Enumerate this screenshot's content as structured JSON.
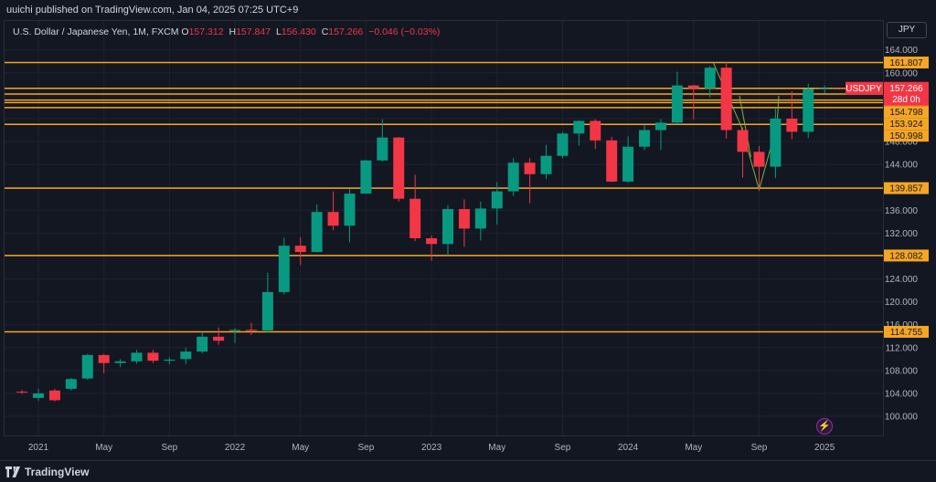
{
  "header": {
    "published": "uuichi published on TradingView.com, Jan 04, 2025 07:25 UTC+9"
  },
  "legend": {
    "symbol": "U.S. Dollar / Japanese Yen, 1M, FXCM",
    "o_label": "O",
    "o": "157.312",
    "h_label": "H",
    "h": "157.847",
    "l_label": "L",
    "l": "156.430",
    "c_label": "C",
    "c": "157.266",
    "chg": "−0.046 (−0.03%)"
  },
  "axis_currency": "JPY",
  "current": {
    "symbol": "USDJPY",
    "price": "157.266",
    "countdown": "28d 0h"
  },
  "footer": {
    "brand": "TradingView",
    "flash_icon": "lightning-icon"
  },
  "colors": {
    "up": "#089981",
    "down": "#f23645",
    "hline": "#f5a623",
    "bg": "#131722",
    "label_bg": "#f5a623"
  },
  "chart_data": {
    "type": "candlestick",
    "interval": "1M",
    "y_ticks": [
      "100.000",
      "104.000",
      "108.000",
      "112.000",
      "116.000",
      "120.000",
      "124.000",
      "128.000",
      "132.000",
      "136.000",
      "140.000",
      "144.000",
      "148.000",
      "152.000",
      "156.000",
      "160.000",
      "164.000"
    ],
    "y_tick_values": [
      100,
      104,
      108,
      112,
      116,
      120,
      124,
      128,
      132,
      136,
      140,
      144,
      148,
      152,
      156,
      160,
      164
    ],
    "ylim": [
      92.5,
      168
    ],
    "x_labels": [
      "2021",
      "May",
      "Sep",
      "2022",
      "May",
      "Sep",
      "2023",
      "May",
      "Sep",
      "2024",
      "May",
      "Sep",
      "2025"
    ],
    "x_label_month_index": [
      0,
      4,
      8,
      12,
      16,
      20,
      24,
      28,
      32,
      36,
      40,
      44,
      48
    ],
    "horizontal_levels": [
      {
        "value": 161.807,
        "label": "161.807"
      },
      {
        "value": 157.3,
        "label": ""
      },
      {
        "value": 156.3,
        "label": ""
      },
      {
        "value": 155.237,
        "label": "155.237"
      },
      {
        "value": 154.798,
        "label": "154.798"
      },
      {
        "value": 153.924,
        "label": "153.924"
      },
      {
        "value": 150.998,
        "label": "150.998"
      },
      {
        "value": 139.857,
        "label": "139.857"
      },
      {
        "value": 128.082,
        "label": "128.082"
      },
      {
        "value": 114.755,
        "label": "114.755"
      }
    ],
    "candles": [
      {
        "m": -1,
        "o": 104.3,
        "h": 104.6,
        "l": 103.9,
        "c": 104.2
      },
      {
        "m": 0,
        "o": 103.2,
        "h": 104.8,
        "l": 102.7,
        "c": 104.0
      },
      {
        "m": 1,
        "o": 104.5,
        "h": 104.8,
        "l": 102.6,
        "c": 102.8
      },
      {
        "m": 2,
        "o": 104.8,
        "h": 106.7,
        "l": 104.5,
        "c": 106.5
      },
      {
        "m": 3,
        "o": 106.6,
        "h": 110.9,
        "l": 106.4,
        "c": 110.7
      },
      {
        "m": 4,
        "o": 110.7,
        "h": 110.9,
        "l": 107.5,
        "c": 109.3
      },
      {
        "m": 5,
        "o": 109.3,
        "h": 110.0,
        "l": 108.6,
        "c": 109.6
      },
      {
        "m": 6,
        "o": 109.6,
        "h": 111.6,
        "l": 109.2,
        "c": 111.1
      },
      {
        "m": 7,
        "o": 111.1,
        "h": 111.6,
        "l": 109.3,
        "c": 109.7
      },
      {
        "m": 8,
        "o": 109.7,
        "h": 110.3,
        "l": 109.1,
        "c": 109.9
      },
      {
        "m": 9,
        "o": 110.0,
        "h": 112.0,
        "l": 109.1,
        "c": 111.3
      },
      {
        "m": 10,
        "o": 111.3,
        "h": 114.7,
        "l": 111.0,
        "c": 113.9
      },
      {
        "m": 11,
        "o": 113.9,
        "h": 115.5,
        "l": 112.5,
        "c": 113.2
      },
      {
        "m": 12,
        "o": 115.0,
        "h": 115.4,
        "l": 112.8,
        "c": 115.1
      },
      {
        "m": 13,
        "o": 115.1,
        "h": 116.3,
        "l": 114.2,
        "c": 115.0
      },
      {
        "m": 14,
        "o": 115.0,
        "h": 125.1,
        "l": 114.6,
        "c": 121.7
      },
      {
        "m": 15,
        "o": 121.7,
        "h": 131.2,
        "l": 121.3,
        "c": 129.8
      },
      {
        "m": 16,
        "o": 129.8,
        "h": 131.3,
        "l": 126.4,
        "c": 128.7
      },
      {
        "m": 17,
        "o": 128.7,
        "h": 137.0,
        "l": 128.6,
        "c": 135.7
      },
      {
        "m": 18,
        "o": 135.7,
        "h": 139.3,
        "l": 132.5,
        "c": 133.3
      },
      {
        "m": 19,
        "o": 133.3,
        "h": 139.7,
        "l": 130.4,
        "c": 138.9
      },
      {
        "m": 20,
        "o": 138.9,
        "h": 144.8,
        "l": 138.9,
        "c": 144.7
      },
      {
        "m": 21,
        "o": 144.7,
        "h": 151.9,
        "l": 144.5,
        "c": 148.7
      },
      {
        "m": 22,
        "o": 148.7,
        "h": 148.8,
        "l": 137.5,
        "c": 138.0
      },
      {
        "m": 23,
        "o": 138.0,
        "h": 142.2,
        "l": 130.6,
        "c": 131.1
      },
      {
        "m": 24,
        "o": 131.1,
        "h": 131.6,
        "l": 127.2,
        "c": 130.1
      },
      {
        "m": 25,
        "o": 130.1,
        "h": 136.9,
        "l": 128.1,
        "c": 136.2
      },
      {
        "m": 26,
        "o": 136.2,
        "h": 137.9,
        "l": 129.6,
        "c": 132.8
      },
      {
        "m": 27,
        "o": 132.8,
        "h": 137.5,
        "l": 130.7,
        "c": 136.3
      },
      {
        "m": 28,
        "o": 136.3,
        "h": 140.9,
        "l": 133.5,
        "c": 139.3
      },
      {
        "m": 29,
        "o": 139.3,
        "h": 145.1,
        "l": 138.5,
        "c": 144.3
      },
      {
        "m": 30,
        "o": 144.3,
        "h": 145.1,
        "l": 137.2,
        "c": 142.3
      },
      {
        "m": 31,
        "o": 142.3,
        "h": 147.4,
        "l": 141.5,
        "c": 145.5
      },
      {
        "m": 32,
        "o": 145.5,
        "h": 149.7,
        "l": 145.1,
        "c": 149.4
      },
      {
        "m": 33,
        "o": 149.4,
        "h": 151.7,
        "l": 147.3,
        "c": 151.6
      },
      {
        "m": 34,
        "o": 151.6,
        "h": 151.9,
        "l": 146.7,
        "c": 148.2
      },
      {
        "m": 35,
        "o": 148.2,
        "h": 148.8,
        "l": 140.9,
        "c": 141.0
      },
      {
        "m": 36,
        "o": 141.0,
        "h": 148.9,
        "l": 140.8,
        "c": 147.1
      },
      {
        "m": 37,
        "o": 147.1,
        "h": 150.9,
        "l": 146.5,
        "c": 150.0
      },
      {
        "m": 38,
        "o": 150.0,
        "h": 151.9,
        "l": 146.5,
        "c": 151.3
      },
      {
        "m": 39,
        "o": 151.3,
        "h": 160.2,
        "l": 151.0,
        "c": 157.8
      },
      {
        "m": 40,
        "o": 157.8,
        "h": 157.9,
        "l": 151.9,
        "c": 157.3
      },
      {
        "m": 41,
        "o": 157.3,
        "h": 161.2,
        "l": 155.7,
        "c": 160.9
      },
      {
        "m": 42,
        "o": 160.9,
        "h": 161.9,
        "l": 148.5,
        "c": 150.0
      },
      {
        "m": 43,
        "o": 150.0,
        "h": 150.5,
        "l": 141.7,
        "c": 146.2
      },
      {
        "m": 44,
        "o": 146.2,
        "h": 147.2,
        "l": 139.6,
        "c": 143.6
      },
      {
        "m": 45,
        "o": 143.6,
        "h": 153.9,
        "l": 141.6,
        "c": 152.0
      },
      {
        "m": 46,
        "o": 152.0,
        "h": 156.8,
        "l": 148.4,
        "c": 149.7
      },
      {
        "m": 47,
        "o": 149.7,
        "h": 158.1,
        "l": 148.6,
        "c": 157.2
      },
      {
        "m": 48,
        "o": 157.3,
        "h": 157.8,
        "l": 156.4,
        "c": 157.3
      }
    ],
    "drawn_lines": [
      [
        {
          "m": 41.2,
          "v": 161.8
        },
        {
          "m": 42.9,
          "v": 150.7
        },
        {
          "m": 44.0,
          "v": 139.6
        },
        {
          "m": 45.1,
          "v": 151.0
        },
        {
          "m": 45.2,
          "v": 156.0
        }
      ],
      [
        {
          "m": 42.8,
          "v": 156.0
        },
        {
          "m": 43.5,
          "v": 145.3
        }
      ]
    ]
  }
}
